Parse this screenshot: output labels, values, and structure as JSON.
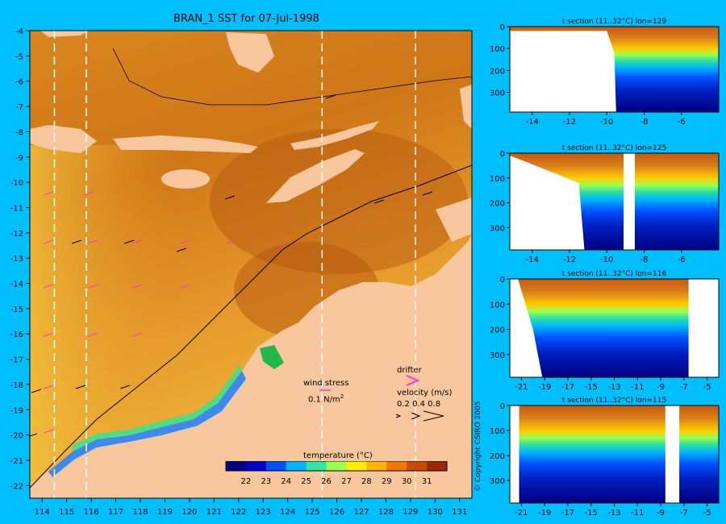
{
  "map": {
    "title": "BRAN_1 SST for 07-Jul-1998",
    "x_ticks": [
      "114",
      "115",
      "116",
      "117",
      "118",
      "119",
      "120",
      "121",
      "122",
      "123",
      "124",
      "125",
      "126",
      "127",
      "128",
      "129",
      "130",
      "131"
    ],
    "y_ticks": [
      "-4",
      "-5",
      "-6",
      "-7",
      "-8",
      "-9",
      "-10",
      "-11",
      "-12",
      "-13",
      "-14",
      "-15",
      "-16",
      "-17",
      "-18",
      "-19",
      "-20",
      "-21",
      "-22"
    ],
    "xlim": [
      113.5,
      131.5
    ],
    "ylim": [
      -22.5,
      -4
    ],
    "section_lons": [
      114.5,
      115.8,
      125.4,
      129.2
    ],
    "colors": {
      "land": "#f9c79d",
      "warm": "#c96a13",
      "cool": "#e49b2a"
    }
  },
  "legend": {
    "wind_stress_label": "wind stress",
    "wind_stress_value": "0.1 N/m",
    "wind_stress_sup": "2",
    "drifter_label": "drifter",
    "velocity_label": "velocity (m/s)",
    "velocity_values": "0.2 0.4 0.8",
    "drifter_color": "#ff33cc"
  },
  "colorbar": {
    "title": "temperature (°C)",
    "ticks": [
      "22",
      "23",
      "24",
      "25",
      "26",
      "27",
      "28",
      "29",
      "30",
      "31"
    ],
    "range": [
      21,
      32
    ],
    "colors": [
      "#00007f",
      "#0000c8",
      "#0050ff",
      "#00b4ff",
      "#32e6a0",
      "#9aff50",
      "#ffee00",
      "#ffb400",
      "#f07800",
      "#c84b00",
      "#9a2800"
    ]
  },
  "sections": [
    {
      "title": "t section (11..32°C) lon=129",
      "x_ticks": [
        "-14",
        "-12",
        "-10",
        "-8",
        "-6"
      ],
      "xlim": [
        -15.2,
        -4
      ],
      "y_ticks": [
        "0",
        "100",
        "200",
        "300"
      ],
      "ylim": [
        0,
        390
      ],
      "land_edge": [
        [
          -15.2,
          20
        ],
        [
          -10,
          20
        ],
        [
          -9.6,
          120
        ],
        [
          -9.5,
          390
        ]
      ],
      "gaps": []
    },
    {
      "title": "t section (11..32°C) lon=125",
      "x_ticks": [
        "-14",
        "-12",
        "-10",
        "-8",
        "-6"
      ],
      "xlim": [
        -15.2,
        -4
      ],
      "y_ticks": [
        "0",
        "100",
        "200",
        "300"
      ],
      "ylim": [
        0,
        390
      ],
      "land_edge": [
        [
          -15.2,
          10
        ],
        [
          -14.5,
          30
        ],
        [
          -11.5,
          120
        ],
        [
          -11.2,
          390
        ]
      ],
      "gaps": [
        [
          -9.1,
          -8.5
        ]
      ]
    },
    {
      "title": "t section (11..32°C) lon=116",
      "x_ticks": [
        "-21",
        "-19",
        "-17",
        "-15",
        "-13",
        "-11",
        "-9",
        "-7",
        "-5"
      ],
      "xlim": [
        -22,
        -4
      ],
      "y_ticks": [
        "0",
        "100",
        "200",
        "300"
      ],
      "ylim": [
        0,
        390
      ],
      "land_edge": [
        [
          -22,
          0
        ],
        [
          -21.3,
          0
        ],
        [
          -20,
          200
        ],
        [
          -19.2,
          390
        ]
      ],
      "gaps": [
        [
          -6.6,
          -4
        ]
      ]
    },
    {
      "title": "t section (11..32°C) lon=115",
      "x_ticks": [
        "-21",
        "-19",
        "-17",
        "-15",
        "-13",
        "-11",
        "-9",
        "-7",
        "-5"
      ],
      "xlim": [
        -22,
        -4
      ],
      "y_ticks": [
        "0",
        "100",
        "200",
        "300"
      ],
      "ylim": [
        0,
        390
      ],
      "land_edge": [
        [
          -22,
          0
        ],
        [
          -21.2,
          0
        ],
        [
          -21.2,
          390
        ]
      ],
      "gaps": [
        [
          -8.6,
          -7.4
        ]
      ]
    }
  ],
  "copyright": "© Copyright CSIRO 2005"
}
